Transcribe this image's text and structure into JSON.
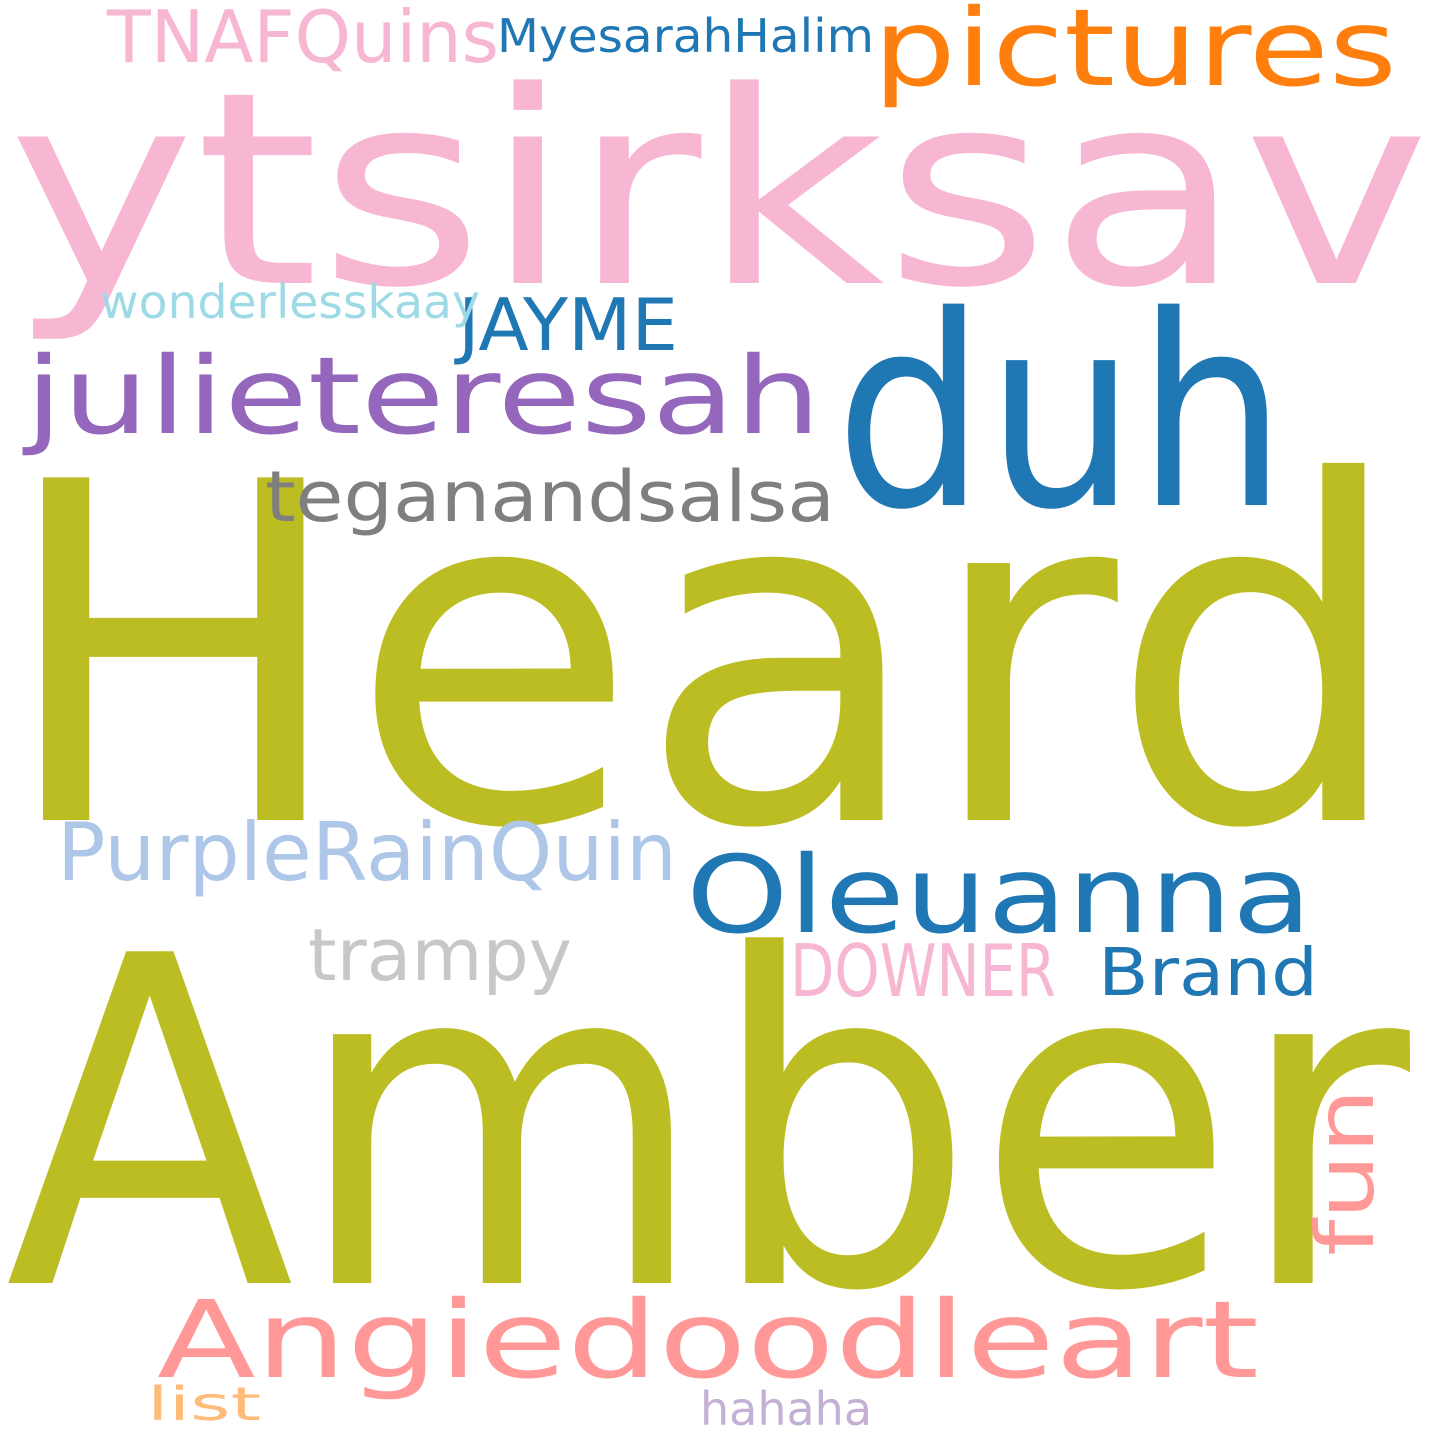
{
  "background": "#ffffff",
  "words": [
    {
      "text": "Heard",
      "color": "#bcbd22"
    },
    {
      "text": "Amber",
      "color": "#bcbd22"
    },
    {
      "text": "ytsirksav",
      "color": "#f7b6d2"
    },
    {
      "text": "duh",
      "color": "#1f77b4"
    },
    {
      "text": "pictures",
      "color": "#ff7f0e"
    },
    {
      "text": "julieteresah",
      "color": "#9467bd"
    },
    {
      "text": "Oleuanna",
      "color": "#1f77b4"
    },
    {
      "text": "Angiedoodleart",
      "color": "#ff9896"
    },
    {
      "text": "PurpleRainQuin",
      "color": "#aec7e8"
    },
    {
      "text": "teganandsalsa",
      "color": "#7f7f7f"
    },
    {
      "text": "TNAFQuins",
      "color": "#f7b6d2"
    },
    {
      "text": "JAYME",
      "color": "#1f77b4"
    },
    {
      "text": "trampy",
      "color": "#c7c7c7"
    },
    {
      "text": "DOWNER",
      "color": "#f7b6d2"
    },
    {
      "text": "Brand",
      "color": "#1f77b4"
    },
    {
      "text": "fun",
      "color": "#ff9896"
    },
    {
      "text": "wonderlesskaay",
      "color": "#9edae5"
    },
    {
      "text": "MyesarahHalim",
      "color": "#1f77b4"
    },
    {
      "text": "hahaha",
      "color": "#c5b0d5"
    },
    {
      "text": "list",
      "color": "#ffbb78"
    }
  ]
}
